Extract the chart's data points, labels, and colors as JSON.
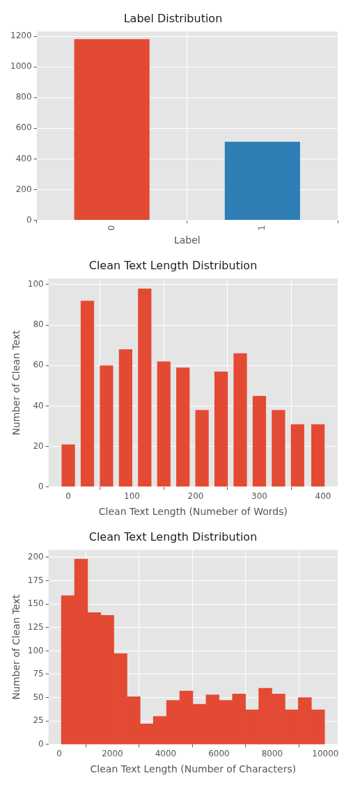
{
  "chart_data": [
    {
      "type": "bar",
      "title": "Label Distribution",
      "xlabel": "Label",
      "categories": [
        "0",
        "1"
      ],
      "values": [
        1181,
        512
      ],
      "colors": [
        "#e24a33",
        "#2e7eb5"
      ],
      "ylim": [
        0,
        1231
      ],
      "yticks": [
        0,
        200,
        400,
        600,
        800,
        1000,
        1200
      ],
      "grid": true
    },
    {
      "type": "bar",
      "title": "Clean Text Length Distribution",
      "xlabel": "Clean Text Length (Numeber of Words)",
      "ylabel": "Number of Clean Text",
      "x": [
        0,
        30,
        60,
        90,
        120,
        150,
        180,
        210,
        240,
        270,
        300,
        330,
        360,
        392
      ],
      "values": [
        21,
        92,
        60,
        68,
        98,
        62,
        59,
        38,
        57,
        66,
        45,
        38,
        31,
        31
      ],
      "color": "#e24a33",
      "xlim": [
        -31,
        423
      ],
      "xticks": [
        0,
        100,
        200,
        300,
        400
      ],
      "ylim": [
        0,
        103
      ],
      "yticks": [
        0,
        20,
        40,
        60,
        80,
        100
      ],
      "grid": true
    },
    {
      "type": "histogram",
      "title": "Clean Text Length Distribution",
      "xlabel": "Clean Text Length (Number of Characters)",
      "ylabel": "Number of Clean Text",
      "bins": [
        80,
        575,
        1070,
        1560,
        2055,
        2550,
        3040,
        3535,
        4030,
        4525,
        5020,
        5515,
        6010,
        6505,
        7000,
        7495,
        7990,
        8485,
        8980,
        9475,
        9970
      ],
      "values": [
        159,
        198,
        141,
        138,
        97,
        51,
        22,
        30,
        47,
        57,
        43,
        53,
        47,
        54,
        37,
        60,
        54,
        37,
        50,
        37
      ],
      "color": "#e24a33",
      "xlim": [
        -400,
        10460
      ],
      "xticks": [
        0,
        2000,
        4000,
        6000,
        8000,
        10000
      ],
      "ylim": [
        0,
        208
      ],
      "yticks": [
        0,
        25,
        50,
        75,
        100,
        125,
        150,
        175,
        200
      ],
      "grid": true
    }
  ]
}
